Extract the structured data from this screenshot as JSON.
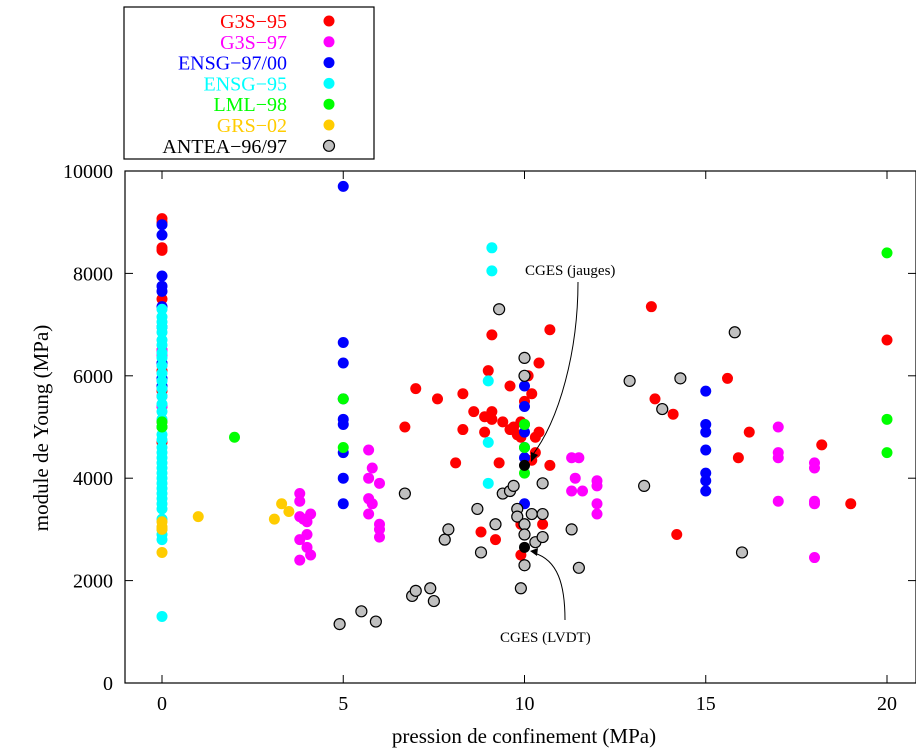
{
  "chart_data": {
    "type": "scatter",
    "xlabel": "pression de confinement (MPa)",
    "ylabel": "module de Young (MPa)",
    "xlim": [
      -1,
      21
    ],
    "ylim": [
      0,
      10000
    ],
    "xticks": [
      0,
      5,
      10,
      15,
      20
    ],
    "yticks": [
      0,
      2000,
      4000,
      6000,
      8000,
      10000
    ],
    "x_tick_labels": [
      "0",
      "5",
      "10",
      "15",
      "20"
    ],
    "y_tick_labels": [
      "0",
      "2000",
      "4000",
      "6000",
      "8000",
      "10000"
    ],
    "grid": false,
    "legend_position": "top-left, outside plot",
    "series": [
      {
        "name": "G3S−95",
        "color": "#ff0000",
        "marker": "filled-circle",
        "points": [
          [
            0,
            9070
          ],
          [
            0,
            9000
          ],
          [
            0,
            8500
          ],
          [
            0,
            8450
          ],
          [
            0,
            7500
          ],
          [
            0,
            6500
          ],
          [
            0,
            6100
          ],
          [
            0,
            5700
          ],
          [
            0,
            5400
          ],
          [
            0,
            5000
          ],
          [
            0,
            4700
          ],
          [
            6.7,
            5000
          ],
          [
            7,
            5750
          ],
          [
            7.6,
            5550
          ],
          [
            8.1,
            4300
          ],
          [
            8.3,
            5650
          ],
          [
            8.3,
            4950
          ],
          [
            8.6,
            5300
          ],
          [
            8.9,
            5200
          ],
          [
            8.9,
            4900
          ],
          [
            9,
            6100
          ],
          [
            9.1,
            6800
          ],
          [
            9.1,
            5300
          ],
          [
            9.1,
            5150
          ],
          [
            9.3,
            4300
          ],
          [
            9.4,
            5100
          ],
          [
            9.6,
            5800
          ],
          [
            9.6,
            4950
          ],
          [
            9.7,
            5000
          ],
          [
            9.8,
            4850
          ],
          [
            9.9,
            5100
          ],
          [
            9.9,
            4800
          ],
          [
            10,
            5500
          ],
          [
            10,
            5050
          ],
          [
            10.1,
            6000
          ],
          [
            10.2,
            5650
          ],
          [
            10.2,
            4350
          ],
          [
            10.3,
            4800
          ],
          [
            10.3,
            4500
          ],
          [
            10.4,
            6250
          ],
          [
            10.4,
            4900
          ],
          [
            10.7,
            6900
          ],
          [
            10.7,
            4250
          ],
          [
            8.8,
            2950
          ],
          [
            9.2,
            2800
          ],
          [
            9.9,
            3100
          ],
          [
            9.9,
            2500
          ],
          [
            10.5,
            3100
          ],
          [
            13.5,
            7350
          ],
          [
            13.6,
            5550
          ],
          [
            14.1,
            5250
          ],
          [
            14.2,
            2900
          ],
          [
            15.6,
            5950
          ],
          [
            15.9,
            4400
          ],
          [
            16.2,
            4900
          ],
          [
            18.2,
            4650
          ],
          [
            19,
            3500
          ],
          [
            20,
            6700
          ]
        ]
      },
      {
        "name": "G3S−97",
        "color": "#ff00ff",
        "marker": "filled-circle",
        "points": [
          [
            0,
            6500
          ],
          [
            0,
            6400
          ],
          [
            0,
            6200
          ],
          [
            0,
            5600
          ],
          [
            0,
            5400
          ],
          [
            0,
            5100
          ],
          [
            3.8,
            3700
          ],
          [
            3.8,
            3550
          ],
          [
            3.8,
            3250
          ],
          [
            3.9,
            3200
          ],
          [
            4,
            3150
          ],
          [
            3.8,
            2800
          ],
          [
            3.8,
            2400
          ],
          [
            4,
            2900
          ],
          [
            4,
            2650
          ],
          [
            4.1,
            2500
          ],
          [
            4.1,
            3300
          ],
          [
            5.7,
            4550
          ],
          [
            5.7,
            4000
          ],
          [
            5.7,
            3600
          ],
          [
            5.8,
            3500
          ],
          [
            5.7,
            3300
          ],
          [
            5.8,
            4200
          ],
          [
            6,
            3900
          ],
          [
            6,
            3100
          ],
          [
            6,
            3000
          ],
          [
            6,
            2850
          ],
          [
            11.3,
            3750
          ],
          [
            11.3,
            4400
          ],
          [
            11.5,
            4400
          ],
          [
            11.4,
            4000
          ],
          [
            11.6,
            3750
          ],
          [
            12,
            3950
          ],
          [
            12,
            3850
          ],
          [
            12,
            3500
          ],
          [
            12,
            3300
          ],
          [
            17,
            5000
          ],
          [
            17,
            4500
          ],
          [
            17,
            4400
          ],
          [
            17,
            3550
          ],
          [
            18,
            4300
          ],
          [
            18,
            4200
          ],
          [
            18,
            3550
          ],
          [
            18,
            3500
          ],
          [
            18,
            2450
          ]
        ]
      },
      {
        "name": "ENSG−97/00",
        "color": "#0000ff",
        "marker": "filled-circle",
        "points": [
          [
            0,
            8950
          ],
          [
            0,
            8750
          ],
          [
            0,
            7950
          ],
          [
            0,
            7750
          ],
          [
            0,
            7650
          ],
          [
            0,
            7350
          ],
          [
            0,
            6950
          ],
          [
            0,
            6250
          ],
          [
            0,
            5950
          ],
          [
            0,
            5800
          ],
          [
            5,
            9700
          ],
          [
            5,
            6650
          ],
          [
            5,
            6250
          ],
          [
            5,
            5550
          ],
          [
            5,
            5150
          ],
          [
            5,
            5050
          ],
          [
            5,
            4500
          ],
          [
            5,
            4000
          ],
          [
            5,
            3500
          ],
          [
            10,
            5800
          ],
          [
            10,
            5400
          ],
          [
            10,
            4900
          ],
          [
            10,
            4600
          ],
          [
            10,
            4400
          ],
          [
            10,
            3500
          ],
          [
            15,
            5700
          ],
          [
            15,
            5050
          ],
          [
            15,
            4900
          ],
          [
            15,
            4550
          ],
          [
            15,
            4100
          ],
          [
            15,
            3950
          ],
          [
            15,
            3750
          ]
        ]
      },
      {
        "name": "ENSG−95",
        "color": "#00ffff",
        "marker": "filled-circle",
        "points": [
          [
            0,
            7300
          ],
          [
            0,
            7150
          ],
          [
            0,
            7050
          ],
          [
            0,
            6950
          ],
          [
            0,
            6850
          ],
          [
            0,
            6700
          ],
          [
            0,
            6600
          ],
          [
            0,
            6450
          ],
          [
            0,
            6350
          ],
          [
            0,
            6200
          ],
          [
            0,
            6050
          ],
          [
            0,
            5900
          ],
          [
            0,
            5750
          ],
          [
            0,
            5600
          ],
          [
            0,
            5450
          ],
          [
            0,
            5300
          ],
          [
            0,
            5150
          ],
          [
            0,
            5000
          ],
          [
            0,
            4850
          ],
          [
            0,
            4750
          ],
          [
            0,
            4600
          ],
          [
            0,
            4500
          ],
          [
            0,
            4400
          ],
          [
            0,
            4300
          ],
          [
            0,
            4200
          ],
          [
            0,
            4100
          ],
          [
            0,
            4000
          ],
          [
            0,
            3900
          ],
          [
            0,
            3800
          ],
          [
            0,
            3700
          ],
          [
            0,
            3600
          ],
          [
            0,
            3500
          ],
          [
            0,
            3400
          ],
          [
            0,
            3200
          ],
          [
            0,
            3000
          ],
          [
            0,
            2900
          ],
          [
            0,
            2800
          ],
          [
            0,
            1300
          ],
          [
            9.1,
            8500
          ],
          [
            9.1,
            8050
          ],
          [
            9,
            5900
          ],
          [
            9,
            4700
          ],
          [
            9,
            3900
          ]
        ]
      },
      {
        "name": "LML−98",
        "color": "#00ff00",
        "marker": "filled-circle",
        "points": [
          [
            0,
            5100
          ],
          [
            0,
            5000
          ],
          [
            2,
            4800
          ],
          [
            5,
            5550
          ],
          [
            5,
            4600
          ],
          [
            10,
            5050
          ],
          [
            10,
            4600
          ],
          [
            10,
            4100
          ],
          [
            20,
            8400
          ],
          [
            20,
            5150
          ],
          [
            20,
            4500
          ]
        ]
      },
      {
        "name": "GRS−02",
        "color": "#ffcc00",
        "marker": "filled-circle",
        "points": [
          [
            0,
            3150
          ],
          [
            0,
            3050
          ],
          [
            0,
            3000
          ],
          [
            0,
            2550
          ],
          [
            1,
            3250
          ],
          [
            3.1,
            3200
          ],
          [
            3.3,
            3500
          ],
          [
            3.5,
            3350
          ]
        ]
      },
      {
        "name": "ANTEA−96/97",
        "color": "#c0c0c0",
        "marker": "open-circle",
        "points": [
          [
            4.9,
            1150
          ],
          [
            5.5,
            1400
          ],
          [
            5.9,
            1200
          ],
          [
            6.7,
            3700
          ],
          [
            6.9,
            1700
          ],
          [
            7,
            1800
          ],
          [
            7.4,
            1850
          ],
          [
            7.5,
            1600
          ],
          [
            7.8,
            2800
          ],
          [
            7.9,
            3000
          ],
          [
            8.7,
            3400
          ],
          [
            8.8,
            2550
          ],
          [
            9.2,
            3100
          ],
          [
            9.3,
            7300
          ],
          [
            9.4,
            3700
          ],
          [
            9.6,
            3750
          ],
          [
            9.7,
            3850
          ],
          [
            9.8,
            3400
          ],
          [
            9.8,
            3250
          ],
          [
            9.9,
            1850
          ],
          [
            10,
            6350
          ],
          [
            10,
            6000
          ],
          [
            10,
            3100
          ],
          [
            10,
            2900
          ],
          [
            10,
            2300
          ],
          [
            10.2,
            3300
          ],
          [
            10.3,
            2750
          ],
          [
            10.5,
            3300
          ],
          [
            10.5,
            2850
          ],
          [
            11.3,
            3000
          ],
          [
            11.5,
            2250
          ],
          [
            12.9,
            5900
          ],
          [
            13.3,
            3850
          ],
          [
            13.8,
            5350
          ],
          [
            14.3,
            5950
          ],
          [
            15.8,
            6850
          ],
          [
            16,
            2550
          ],
          [
            10.5,
            3900
          ]
        ]
      },
      {
        "name": "",
        "color": "#000000",
        "marker": "filled-circle",
        "points": [
          [
            10,
            4250
          ],
          [
            10,
            2650
          ]
        ]
      }
    ],
    "annotations": [
      {
        "text": "CGES (jauges)",
        "target": [
          10.1,
          4250
        ],
        "label_anchor": [
          10.2,
          8000
        ]
      },
      {
        "text": "CGES (LVDT)",
        "target": [
          10.1,
          2650
        ],
        "label_anchor": [
          10.2,
          800
        ]
      }
    ]
  }
}
